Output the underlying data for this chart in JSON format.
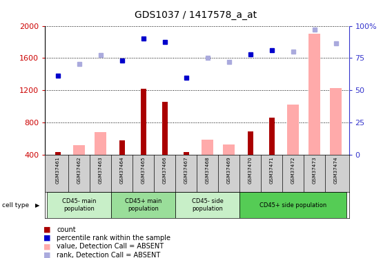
{
  "title": "GDS1037 / 1417578_a_at",
  "samples": [
    "GSM37461",
    "GSM37462",
    "GSM37463",
    "GSM37464",
    "GSM37465",
    "GSM37466",
    "GSM37467",
    "GSM37468",
    "GSM37469",
    "GSM37470",
    "GSM37471",
    "GSM37472",
    "GSM37473",
    "GSM37474"
  ],
  "count_bars": [
    430,
    null,
    null,
    580,
    1220,
    1060,
    430,
    null,
    null,
    690,
    860,
    null,
    null,
    null
  ],
  "absent_value_bars": [
    null,
    520,
    680,
    null,
    null,
    null,
    null,
    590,
    530,
    null,
    null,
    1020,
    1900,
    1230
  ],
  "percentile_rank": [
    1380,
    null,
    null,
    1570,
    1840,
    1800,
    1360,
    null,
    null,
    1650,
    1700,
    null,
    null,
    null
  ],
  "absent_rank": [
    null,
    1530,
    1640,
    null,
    null,
    null,
    null,
    1600,
    1555,
    null,
    null,
    1680,
    1950,
    1780
  ],
  "cell_type_groups": [
    {
      "label": "CD45- main\npopulation",
      "start": 0,
      "end": 2,
      "color": "#c8efc8"
    },
    {
      "label": "CD45+ main\npopulation",
      "start": 3,
      "end": 5,
      "color": "#9ade9a"
    },
    {
      "label": "CD45- side\npopulation",
      "start": 6,
      "end": 8,
      "color": "#c8efc8"
    },
    {
      "label": "CD45+ side population",
      "start": 9,
      "end": 13,
      "color": "#55cc55"
    }
  ],
  "ylim_left": [
    400,
    2000
  ],
  "ylim_right": [
    0,
    100
  ],
  "yticks_left": [
    400,
    800,
    1200,
    1600,
    2000
  ],
  "yticks_right": [
    0,
    25,
    50,
    75,
    100
  ],
  "right_tick_labels": [
    "0",
    "25",
    "50",
    "75",
    "100%"
  ],
  "bar_color_dark": "#aa0000",
  "bar_color_light": "#ffaaaa",
  "dot_color_dark": "#0000cc",
  "dot_color_light": "#aaaadd",
  "ylabel_left_color": "#cc0000",
  "ylabel_right_color": "#3333cc",
  "bg_plot": "#ffffff",
  "bg_sample_row": "#d0d0d0"
}
